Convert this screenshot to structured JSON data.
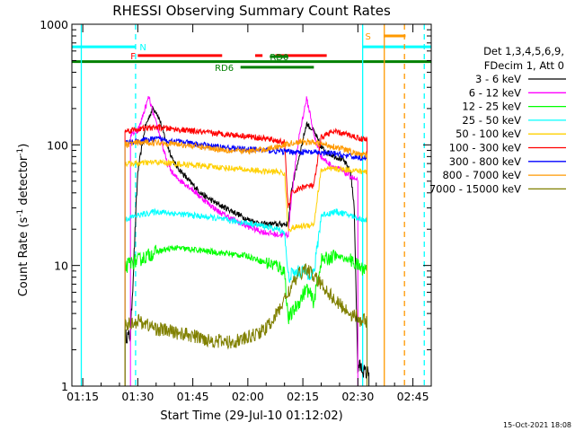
{
  "chart_data": {
    "type": "line",
    "title": "RHESSI Observing Summary Count Rates",
    "xlabel": "Start Time (29-Jul-10 01:12:02)",
    "ylabel_main": "Count Rate (s",
    "ylabel_sup1": "-1",
    "ylabel_mid": " detector",
    "ylabel_sup2": "-1",
    "ylabel_end": ")",
    "yscale": "log",
    "ylim": [
      1,
      1000
    ],
    "xlim_min": [
      72.03,
      170
    ],
    "xticks": [
      {
        "v": 75,
        "label": "01:15"
      },
      {
        "v": 90,
        "label": "01:30"
      },
      {
        "v": 105,
        "label": "01:45"
      },
      {
        "v": 120,
        "label": "02:00"
      },
      {
        "v": 135,
        "label": "02:15"
      },
      {
        "v": 150,
        "label": "02:30"
      },
      {
        "v": 165,
        "label": "02:45"
      }
    ],
    "yticks": [
      {
        "v": 1,
        "label": "1"
      },
      {
        "v": 10,
        "label": "10"
      },
      {
        "v": 100,
        "label": "100"
      },
      {
        "v": 1000,
        "label": "1000"
      }
    ],
    "legend_header": [
      "Det 1,3,4,5,6,9,",
      "FDecim 1, Att 0"
    ],
    "legend_placement": "right",
    "series": [
      {
        "name": "3 - 6 keV",
        "color": "#000000",
        "x": [
          86.5,
          88,
          90,
          92,
          94,
          95,
          96,
          98,
          100,
          104,
          108,
          112,
          116,
          120,
          124,
          128,
          131,
          132,
          134,
          136,
          138,
          140,
          142,
          144,
          146,
          148,
          149,
          150,
          150.2,
          152,
          153
        ],
        "y": [
          2.6,
          2.6,
          60,
          140,
          200,
          190,
          160,
          100,
          70,
          50,
          38,
          32,
          28,
          24,
          22,
          22,
          22,
          45,
          80,
          150,
          130,
          95,
          85,
          80,
          75,
          60,
          30,
          1.3,
          1.5,
          1.3,
          1.3
        ]
      },
      {
        "name": "6 - 12 keV",
        "color": "#ff00ff",
        "x": [
          88,
          90,
          92,
          93,
          94,
          95,
          96,
          98,
          100,
          104,
          108,
          112,
          116,
          120,
          124,
          128,
          131,
          132,
          134,
          136,
          137,
          138,
          140,
          142,
          144,
          146,
          148,
          150
        ],
        "y": [
          120,
          130,
          200,
          250,
          190,
          150,
          120,
          70,
          55,
          45,
          35,
          28,
          24,
          21,
          19,
          18,
          18,
          40,
          120,
          240,
          180,
          120,
          80,
          70,
          65,
          60,
          55,
          50
        ]
      },
      {
        "name": "12 - 25 keV",
        "color": "#00ff00",
        "x": [
          86.5,
          88,
          90,
          95,
          100,
          105,
          110,
          115,
          120,
          125,
          128,
          130,
          131,
          132,
          134,
          136,
          138,
          140,
          144,
          148,
          151,
          152.5
        ],
        "y": [
          9.5,
          10.5,
          11,
          13,
          14,
          13.5,
          13,
          12.5,
          12,
          10.5,
          10,
          9,
          3.6,
          4,
          5,
          6.5,
          5,
          11,
          12,
          11,
          9.5,
          9.5
        ]
      },
      {
        "name": "25 - 50 keV",
        "color": "#00ffff",
        "x": [
          86.5,
          88,
          90,
          95,
          100,
          105,
          110,
          115,
          120,
          125,
          128,
          130,
          131,
          132,
          135,
          138,
          140,
          144,
          148,
          151,
          152.5
        ],
        "y": [
          24,
          25,
          26,
          28,
          27,
          26,
          25,
          23.5,
          22.5,
          21,
          20,
          19,
          8,
          8.5,
          9,
          8.5,
          26,
          28,
          26,
          24,
          24
        ]
      },
      {
        "name": "50 - 100 keV",
        "color": "#ffd000",
        "x": [
          86.5,
          88,
          90,
          95,
          100,
          105,
          110,
          115,
          120,
          125,
          128,
          130,
          131,
          134,
          138,
          140,
          144,
          148,
          151,
          152.5
        ],
        "y": [
          70,
          70,
          70,
          72,
          70,
          68,
          66,
          64,
          62,
          60,
          60,
          58,
          20,
          21,
          22,
          62,
          63,
          62,
          60,
          60
        ]
      },
      {
        "name": "100 - 300 keV",
        "color": "#ff0000",
        "x": [
          86.5,
          88,
          90,
          95,
          100,
          105,
          110,
          115,
          120,
          125,
          128,
          130,
          131,
          132,
          135,
          138,
          140,
          142,
          144,
          148,
          151,
          152.5
        ],
        "y": [
          130,
          132,
          135,
          140,
          135,
          130,
          125,
          122,
          118,
          112,
          108,
          105,
          30,
          40,
          45,
          46,
          115,
          125,
          128,
          120,
          112,
          112
        ]
      },
      {
        "name": "300 - 800 keV",
        "color": "#0000ff",
        "x": [
          86.5,
          88,
          90,
          95,
          100,
          105,
          110,
          115,
          120,
          125,
          130,
          135,
          140,
          144,
          148,
          151,
          152.5
        ],
        "y": [
          104,
          105,
          108,
          112,
          108,
          102,
          98,
          94,
          92,
          90,
          88,
          87,
          86,
          84,
          80,
          78,
          78
        ]
      },
      {
        "name": "800 - 7000 keV",
        "color": "#ff9900",
        "x": [
          86.5,
          88,
          90,
          95,
          100,
          105,
          110,
          115,
          120,
          125,
          130,
          133,
          136,
          140,
          144,
          148,
          151,
          152.5
        ],
        "y": [
          100,
          102,
          104,
          105,
          102,
          98,
          94,
          90,
          88,
          92,
          100,
          105,
          106,
          102,
          96,
          88,
          82,
          82
        ]
      },
      {
        "name": "7000 - 15000 keV",
        "color": "#808000",
        "x": [
          86.5,
          88,
          90,
          95,
          100,
          105,
          110,
          115,
          120,
          125,
          128,
          131,
          134,
          136,
          138,
          140,
          142,
          144,
          146,
          148,
          151,
          152.5
        ],
        "y": [
          3.2,
          3.3,
          3.5,
          3.0,
          2.8,
          2.6,
          2.4,
          2.3,
          2.5,
          3.0,
          4.0,
          6.0,
          8.5,
          9.5,
          8.0,
          7.0,
          6.0,
          5.0,
          4.5,
          4.0,
          3.5,
          3.5
        ]
      }
    ],
    "vertical_lines": [
      {
        "x": 74.6,
        "color": "#00ffff",
        "style": "solid"
      },
      {
        "x": 89.4,
        "color": "#00ffff",
        "style": "dashed"
      },
      {
        "x": 151.3,
        "color": "#00ffff",
        "style": "solid"
      },
      {
        "x": 168.1,
        "color": "#00ffff",
        "style": "dashed"
      },
      {
        "x": 157.2,
        "color": "#ff9900",
        "style": "solid"
      },
      {
        "x": 162.7,
        "color": "#ff9900",
        "style": "dashed"
      }
    ],
    "flag_bars": [
      {
        "label": "N",
        "color": "#00ffff",
        "x0": 72.03,
        "x1": 89.4,
        "y": 650,
        "label_x": 90.5
      },
      {
        "label": "N",
        "color": "#00ffff",
        "x0": 151.3,
        "x1": 170,
        "y": 650,
        "label_x": 0
      },
      {
        "label": "F",
        "color": "#ff0000",
        "x0": 90,
        "x1": 113,
        "y": 550,
        "label_x": 88
      },
      {
        "label": "F",
        "color": "#ff0000",
        "x0": 122,
        "x1": 124,
        "y": 550,
        "label_x": 0
      },
      {
        "label": "F",
        "color": "#ff0000",
        "x0": 127.5,
        "x1": 141.5,
        "y": 550,
        "label_x": 0
      },
      {
        "label": "",
        "color": "#008000",
        "x0": 72.03,
        "x1": 170,
        "y": 490,
        "label_x": 0
      },
      {
        "label": "RD0",
        "color": "#008000",
        "x0": 126,
        "x1": 131,
        "y": 540,
        "label_x": 126
      },
      {
        "label": "RD6",
        "color": "#008000",
        "x0": 118,
        "x1": 138,
        "y": 440,
        "label_x": 111
      },
      {
        "label": "S",
        "color": "#ff9900",
        "x0": 157,
        "x1": 163,
        "y": 800,
        "label_x": 152
      }
    ]
  },
  "footer_timestamp": "15-Oct-2021 18:08"
}
